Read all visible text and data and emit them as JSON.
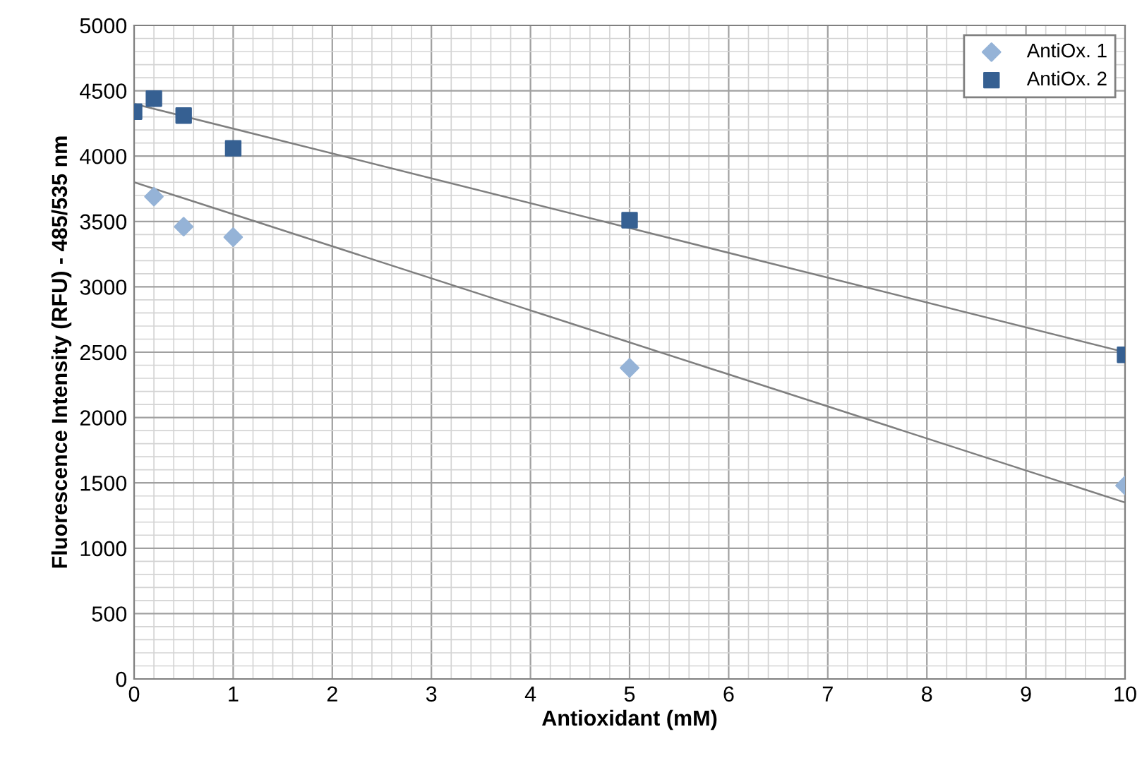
{
  "chart_data": {
    "type": "scatter",
    "xlabel": "Antioxidant (mM)",
    "ylabel": "Fluorescence Intensity (RFU) - 485/535 nm",
    "xlim": [
      0,
      10
    ],
    "ylim": [
      0,
      5000
    ],
    "xticks": [
      0,
      1,
      2,
      3,
      4,
      5,
      6,
      7,
      8,
      9,
      10
    ],
    "yticks": [
      0,
      500,
      1000,
      1500,
      2000,
      2500,
      3000,
      3500,
      4000,
      4500,
      5000
    ],
    "grid": true,
    "legend": "top right",
    "series": [
      {
        "name": "AntiOx. 1",
        "color": "#95b3d7",
        "marker": "diamond",
        "x": [
          0.2,
          0.5,
          1,
          5,
          10
        ],
        "values": [
          3690,
          3460,
          3380,
          2380,
          1480
        ]
      },
      {
        "name": "AntiOx. 2",
        "color": "#366092",
        "marker": "square",
        "x": [
          0,
          0.2,
          0.5,
          1,
          5,
          10
        ],
        "values": [
          4340,
          4440,
          4310,
          4060,
          3510,
          2480
        ]
      },
      {
        "type": "line",
        "color": "#7f7f7f",
        "marker": "none",
        "x": [
          0,
          10
        ],
        "values": [
          3800,
          1350
        ]
      },
      {
        "type": "line",
        "color": "#7f7f7f",
        "marker": "none",
        "x": [
          0,
          10
        ],
        "values": [
          4400,
          2500
        ]
      }
    ]
  }
}
